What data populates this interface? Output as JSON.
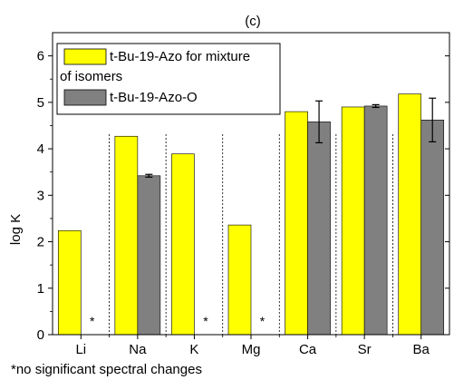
{
  "chart_data": {
    "type": "bar",
    "title": "(c)",
    "xlabel": "",
    "ylabel": "log K",
    "ylim": [
      0,
      6.5
    ],
    "yticks": [
      0,
      1,
      2,
      3,
      4,
      5,
      6
    ],
    "categories": [
      "Li",
      "Na",
      "K",
      "Mg",
      "Ca",
      "Sr",
      "Ba"
    ],
    "series": [
      {
        "name": "t-Bu-19-Azo for mixture of isomers",
        "legend_lines": [
          "t-Bu-19-Azo for mixture",
          "of isomers"
        ],
        "color": "#ffff00",
        "values": [
          2.24,
          4.27,
          3.89,
          2.36,
          4.8,
          4.9,
          5.18
        ],
        "errors": [
          null,
          null,
          null,
          null,
          null,
          null,
          null
        ]
      },
      {
        "name": "t-Bu-19-Azo-O",
        "legend_lines": [
          "t-Bu-19-Azo-O"
        ],
        "color": "#808080",
        "values": [
          null,
          3.42,
          null,
          null,
          4.58,
          4.92,
          4.62
        ],
        "errors": [
          null,
          0.03,
          null,
          null,
          0.45,
          0.03,
          0.47
        ]
      }
    ],
    "no_change_markers": [
      {
        "category": "Li",
        "label": "*"
      },
      {
        "category": "K",
        "label": "*"
      },
      {
        "category": "Mg",
        "label": "*"
      }
    ],
    "legend_position": "top-left",
    "footnote": "*no significant spectral changes",
    "grid": false
  }
}
